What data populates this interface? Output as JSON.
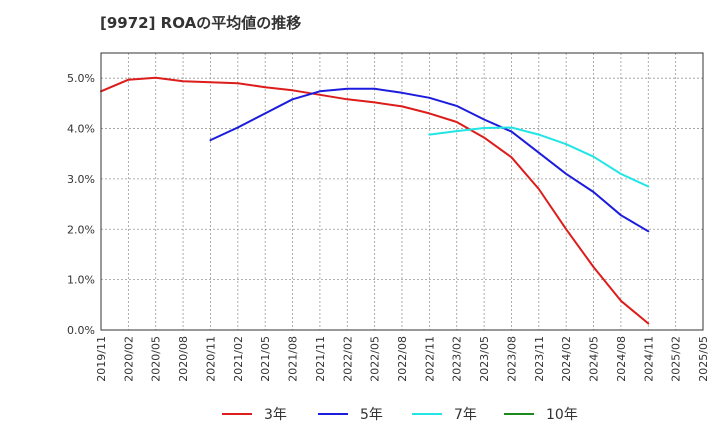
{
  "chart_data": {
    "type": "line",
    "title": "[9972]  ROAの平均値の推移",
    "xlabel": "",
    "ylabel": "",
    "x": [
      "2019/11",
      "2020/02",
      "2020/05",
      "2020/08",
      "2020/11",
      "2021/02",
      "2021/05",
      "2021/08",
      "2021/11",
      "2022/02",
      "2022/05",
      "2022/08",
      "2022/11",
      "2023/02",
      "2023/05",
      "2023/08",
      "2023/11",
      "2024/02",
      "2024/05",
      "2024/08",
      "2024/11",
      "2025/02",
      "2025/05"
    ],
    "yticks": [
      "0.0%",
      "1.0%",
      "2.0%",
      "3.0%",
      "4.0%",
      "5.0%"
    ],
    "ylim": [
      0,
      5.5
    ],
    "grid": true,
    "legend_position": "bottom",
    "series": [
      {
        "name": "3年",
        "color": "#dd1c1c",
        "values": [
          4.74,
          4.97,
          5.01,
          4.94,
          4.92,
          4.9,
          4.82,
          4.76,
          4.67,
          4.58,
          4.52,
          4.44,
          4.3,
          4.13,
          3.82,
          3.43,
          2.8,
          2.0,
          1.25,
          0.58,
          0.13,
          null,
          null
        ]
      },
      {
        "name": "5年",
        "color": "#1c1cdd",
        "values": [
          null,
          null,
          null,
          null,
          3.77,
          4.02,
          4.3,
          4.58,
          4.74,
          4.79,
          4.79,
          4.71,
          4.61,
          4.45,
          4.18,
          3.94,
          3.52,
          3.1,
          2.74,
          2.28,
          1.96,
          null,
          null
        ]
      },
      {
        "name": "7年",
        "color": "#22e5e5",
        "values": [
          null,
          null,
          null,
          null,
          null,
          null,
          null,
          null,
          null,
          null,
          null,
          null,
          3.88,
          3.95,
          4.01,
          4.02,
          3.88,
          3.69,
          3.44,
          3.1,
          2.85,
          null,
          null
        ]
      },
      {
        "name": "10年",
        "color": "#1c8a1c",
        "values": [
          null,
          null,
          null,
          null,
          null,
          null,
          null,
          null,
          null,
          null,
          null,
          null,
          null,
          null,
          null,
          null,
          null,
          null,
          null,
          null,
          null,
          null,
          null
        ]
      }
    ]
  }
}
